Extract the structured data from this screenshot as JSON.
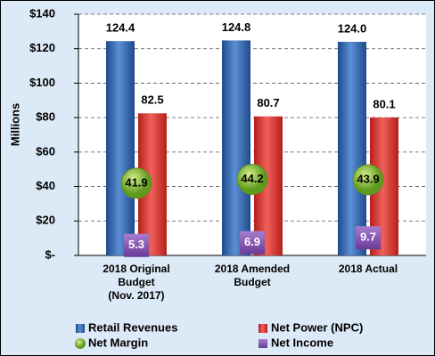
{
  "chart_data": {
    "type": "bar",
    "y_label": "Millions",
    "categories": [
      "2018 Original\nBudget\n(Nov. 2017)",
      "2018 Amended\nBudget",
      "2018 Actual"
    ],
    "series": [
      {
        "name": "Retail Revenues",
        "type": "bar",
        "color": "#2e5fa8",
        "values": [
          124.4,
          124.8,
          124.0
        ],
        "value_labels": [
          "124.4",
          "124.8",
          "124.0"
        ]
      },
      {
        "name": "Net Power (NPC)",
        "type": "bar",
        "color": "#d9312b",
        "values": [
          82.5,
          80.7,
          80.1
        ]
      },
      {
        "name": "Net Margin",
        "type": "circle",
        "color": "#8cc63f",
        "values": [
          41.9,
          44.2,
          43.9
        ]
      },
      {
        "name": "Net Income",
        "type": "square",
        "color": "#8e5bb5",
        "values": [
          5.3,
          6.9,
          9.7
        ]
      }
    ],
    "ylim": [
      0,
      140
    ],
    "yticks": [
      {
        "value": 0,
        "label": "$-"
      },
      {
        "value": 20,
        "label": "$20"
      },
      {
        "value": 40,
        "label": "$40"
      },
      {
        "value": 60,
        "label": "$60"
      },
      {
        "value": 80,
        "label": "$80"
      },
      {
        "value": 100,
        "label": "$100"
      },
      {
        "value": 120,
        "label": "$120"
      },
      {
        "value": 140,
        "label": "$140"
      }
    ],
    "grid": true
  }
}
